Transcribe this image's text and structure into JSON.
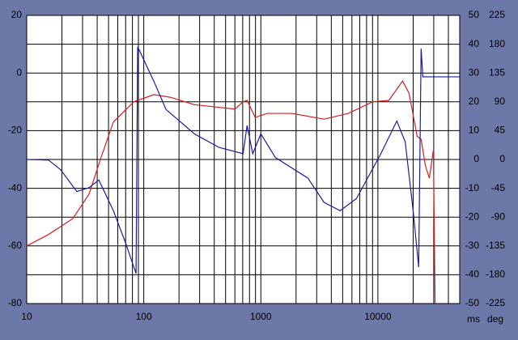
{
  "chart_data": {
    "type": "line",
    "xscale": "log",
    "xlim": [
      10,
      50000
    ],
    "xticks": [
      10,
      100,
      1000,
      10000
    ],
    "xminor_grid": true,
    "ylim": [
      -80,
      20
    ],
    "yticks": [
      -80,
      -60,
      -40,
      -20,
      0,
      20
    ],
    "y2label": "ms",
    "y2lim": [
      -50,
      50
    ],
    "y2ticks": [
      -50,
      -40,
      -30,
      -20,
      -10,
      0,
      10,
      20,
      30,
      40,
      50
    ],
    "y3label": "deg",
    "y3lim": [
      -225,
      225
    ],
    "y3ticks": [
      -225,
      -180,
      -135,
      -90,
      -45,
      0,
      45,
      90,
      135,
      180,
      225
    ],
    "grid": true,
    "series": [
      {
        "color": "#d42020",
        "axis": "y",
        "x": [
          10,
          15.4,
          24.8,
          34.1,
          43.4,
          55,
          82,
          122,
          168,
          271,
          601,
          705,
          763,
          895,
          1135,
          1832,
          3466,
          5590,
          9010,
          12400,
          16250,
          18450,
          21650,
          23400,
          25400,
          27500,
          29800,
          30800
        ],
        "values": [
          -60,
          -56,
          -50.5,
          -42,
          -29,
          -17,
          -10,
          -7.5,
          -8.4,
          -11,
          -12.5,
          -10,
          -9.5,
          -15.4,
          -14,
          -14,
          -16,
          -14,
          -10,
          -9.5,
          -2.8,
          -7,
          -22,
          -23,
          -32,
          -36.5,
          -26.6,
          -80
        ]
      },
      {
        "color": "#1a1aa8",
        "axis": "y3",
        "x": [
          10,
          15.4,
          19.5,
          26.8,
          34.1,
          41.3,
          55,
          69.8,
          85.9,
          88.7,
          122,
          155,
          271,
          437,
          705,
          763,
          853,
          1000,
          1333,
          2520,
          3466,
          4760,
          6560,
          10600,
          14500,
          17100,
          20000,
          22300,
          23400,
          24200,
          50000
        ],
        "values": [
          0,
          -1,
          -16,
          -50,
          -44,
          -32,
          -80,
          -130,
          -178,
          176,
          122,
          78,
          40,
          19,
          9,
          53,
          9,
          40,
          3,
          -29,
          -67,
          -80,
          -61,
          9,
          60,
          28,
          -80,
          -168,
          173,
          129,
          129
        ]
      }
    ]
  }
}
